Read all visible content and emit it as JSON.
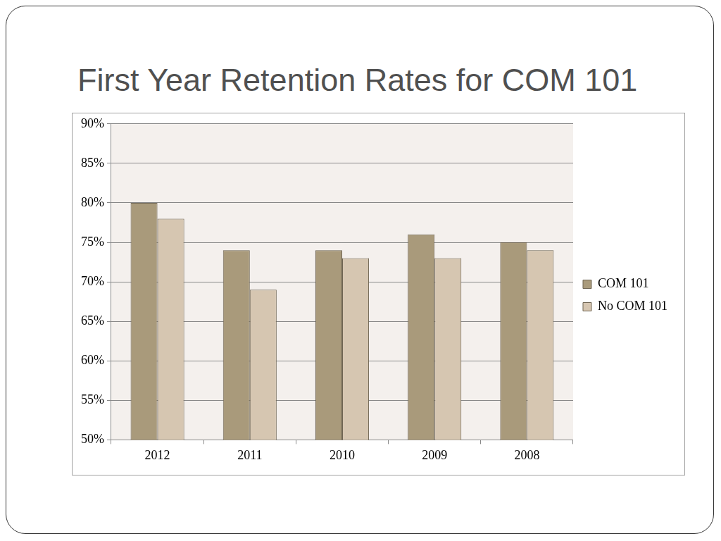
{
  "chart_data": {
    "type": "bar",
    "title": "First Year Retention Rates for COM 101",
    "categories": [
      "2012",
      "2011",
      "2010",
      "2009",
      "2008"
    ],
    "series": [
      {
        "name": "COM 101",
        "color": "#a99a7b",
        "values": [
          80,
          74,
          74,
          76,
          75
        ]
      },
      {
        "name": "No COM 101",
        "color": "#d6c6b1",
        "values": [
          78,
          69,
          73,
          73,
          74
        ]
      }
    ],
    "ylim": [
      50,
      90
    ],
    "yticks": [
      {
        "value": 50,
        "label": "50%"
      },
      {
        "value": 55,
        "label": "55%"
      },
      {
        "value": 60,
        "label": "60%"
      },
      {
        "value": 65,
        "label": "65%"
      },
      {
        "value": 70,
        "label": "70%"
      },
      {
        "value": 75,
        "label": "75%"
      },
      {
        "value": 80,
        "label": "80%"
      },
      {
        "value": 85,
        "label": "85%"
      },
      {
        "value": 90,
        "label": "90%"
      }
    ],
    "grid": true,
    "legend": "right"
  }
}
